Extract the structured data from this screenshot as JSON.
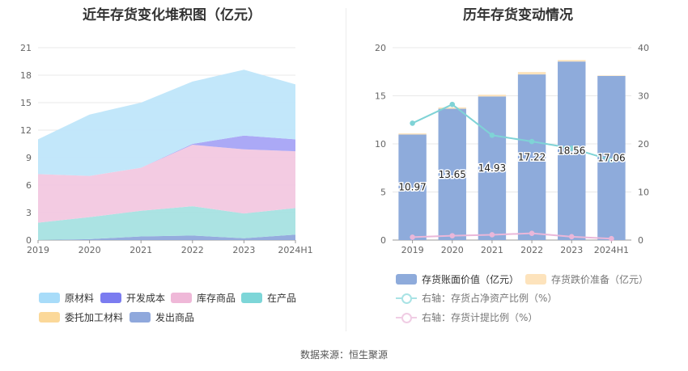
{
  "page": {
    "source_label": "数据来源：恒生聚源"
  },
  "chart_data": [
    {
      "type": "area",
      "stacked": true,
      "title": "近年存货变化堆积图（亿元）",
      "categories": [
        "2019",
        "2020",
        "2021",
        "2022",
        "2023",
        "2024H1"
      ],
      "ylim": [
        0,
        21
      ],
      "yticks": [
        0,
        3,
        6,
        9,
        12,
        15,
        18,
        21
      ],
      "grid": true,
      "legend_position": "bottom",
      "series": [
        {
          "name": "发出商品",
          "color": "#8fa8dc",
          "values": [
            0.0,
            0.1,
            0.4,
            0.5,
            0.2,
            0.6
          ]
        },
        {
          "name": "委托加工材料",
          "color": "#fcd79f",
          "values": [
            0.0,
            0.0,
            0.0,
            0.0,
            0.0,
            0.0
          ]
        },
        {
          "name": "在产品",
          "color": "#a6e2e1",
          "values": [
            1.9,
            2.4,
            2.8,
            3.2,
            2.7,
            2.9
          ]
        },
        {
          "name": "库存商品",
          "color": "#f2c8e0",
          "values": [
            5.3,
            4.5,
            4.7,
            6.7,
            7.0,
            6.2
          ]
        },
        {
          "name": "开发成本",
          "color": "#a7a4f5",
          "values": [
            0.0,
            0.0,
            0.0,
            0.1,
            1.5,
            1.3
          ]
        },
        {
          "name": "原材料",
          "color": "#bfe6fa",
          "values": [
            3.8,
            6.7,
            7.1,
            6.8,
            7.2,
            6.0
          ]
        }
      ],
      "legend_order": [
        "原材料",
        "开发成本",
        "库存商品",
        "在产品",
        "委托加工材料",
        "发出商品"
      ],
      "legend_colors": [
        "#a8dcf9",
        "#7b7cf0",
        "#efb8d8",
        "#7dd6d8",
        "#fbd899",
        "#8fa8dc"
      ]
    },
    {
      "type": "bar",
      "title": "历年存货变动情况",
      "categories": [
        "2019",
        "2020",
        "2021",
        "2022",
        "2023",
        "2024H1"
      ],
      "ylim": [
        0,
        20
      ],
      "yticks": [
        0,
        5,
        10,
        15,
        20
      ],
      "y2lim": [
        0,
        40
      ],
      "y2ticks": [
        0,
        10,
        20,
        30,
        40
      ],
      "grid": true,
      "legend_position": "bottom",
      "series": [
        {
          "name": "存货账面价值（亿元）",
          "type": "bar",
          "axis": "left",
          "color": "#8eabdb",
          "values": [
            10.97,
            13.65,
            14.93,
            17.22,
            18.56,
            17.06
          ]
        },
        {
          "name": "存货跌价准备（亿元）",
          "type": "bar",
          "axis": "left",
          "color": "#fde3bc",
          "values": [
            0.12,
            0.14,
            0.18,
            0.25,
            0.16,
            0.05
          ]
        },
        {
          "name": "右轴：存货占净资产比例（%）",
          "type": "line",
          "axis": "right",
          "color": "#7fd3d6",
          "values": [
            24.3,
            28.2,
            21.8,
            20.5,
            19.1,
            16.6
          ]
        },
        {
          "name": "右轴：存货计提比例（%）",
          "type": "line",
          "axis": "right",
          "color": "#eab7d9",
          "values": [
            0.6,
            0.9,
            1.1,
            1.4,
            0.7,
            0.3
          ]
        }
      ],
      "data_labels": [
        "10.97",
        "13.65",
        "14.93",
        "17.22",
        "18.56",
        "17.06"
      ]
    }
  ]
}
